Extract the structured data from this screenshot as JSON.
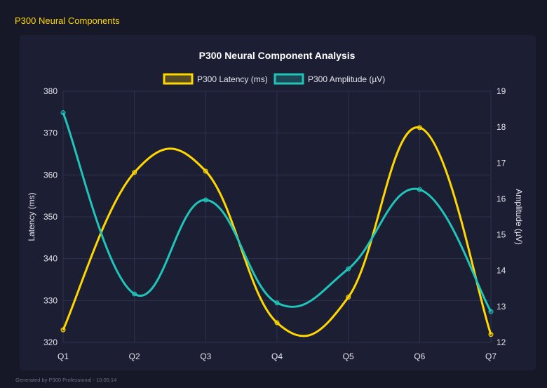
{
  "page": {
    "heading": "P300 Neural Components",
    "footer": "Generated by P300 Professional - 10:05:14"
  },
  "chart_data": {
    "type": "line",
    "title": "P300 Neural Component Analysis",
    "categories": [
      "Q1",
      "Q2",
      "Q3",
      "Q4",
      "Q5",
      "Q6",
      "Q7"
    ],
    "series": [
      {
        "name": "P300 Latency (ms)",
        "axis": "left",
        "color": "#ffd700",
        "values": [
          323.0,
          360.6,
          360.9,
          324.7,
          330.8,
          371.3,
          321.9
        ]
      },
      {
        "name": "P300 Amplitude (µV)",
        "axis": "right",
        "color": "#20c4b8",
        "values": [
          18.4,
          13.35,
          15.97,
          13.1,
          14.05,
          16.26,
          12.86
        ]
      }
    ],
    "ylabel": "Latency (ms)",
    "y2label": "Amplitude (µV)",
    "ylim": [
      320,
      380
    ],
    "y2lim": [
      12,
      19
    ],
    "yticks": [
      "320",
      "330",
      "340",
      "350",
      "360",
      "370",
      "380"
    ],
    "y2ticks": [
      "12",
      "13",
      "14",
      "15",
      "16",
      "17",
      "18",
      "19"
    ],
    "grid": true,
    "legend": "top"
  }
}
